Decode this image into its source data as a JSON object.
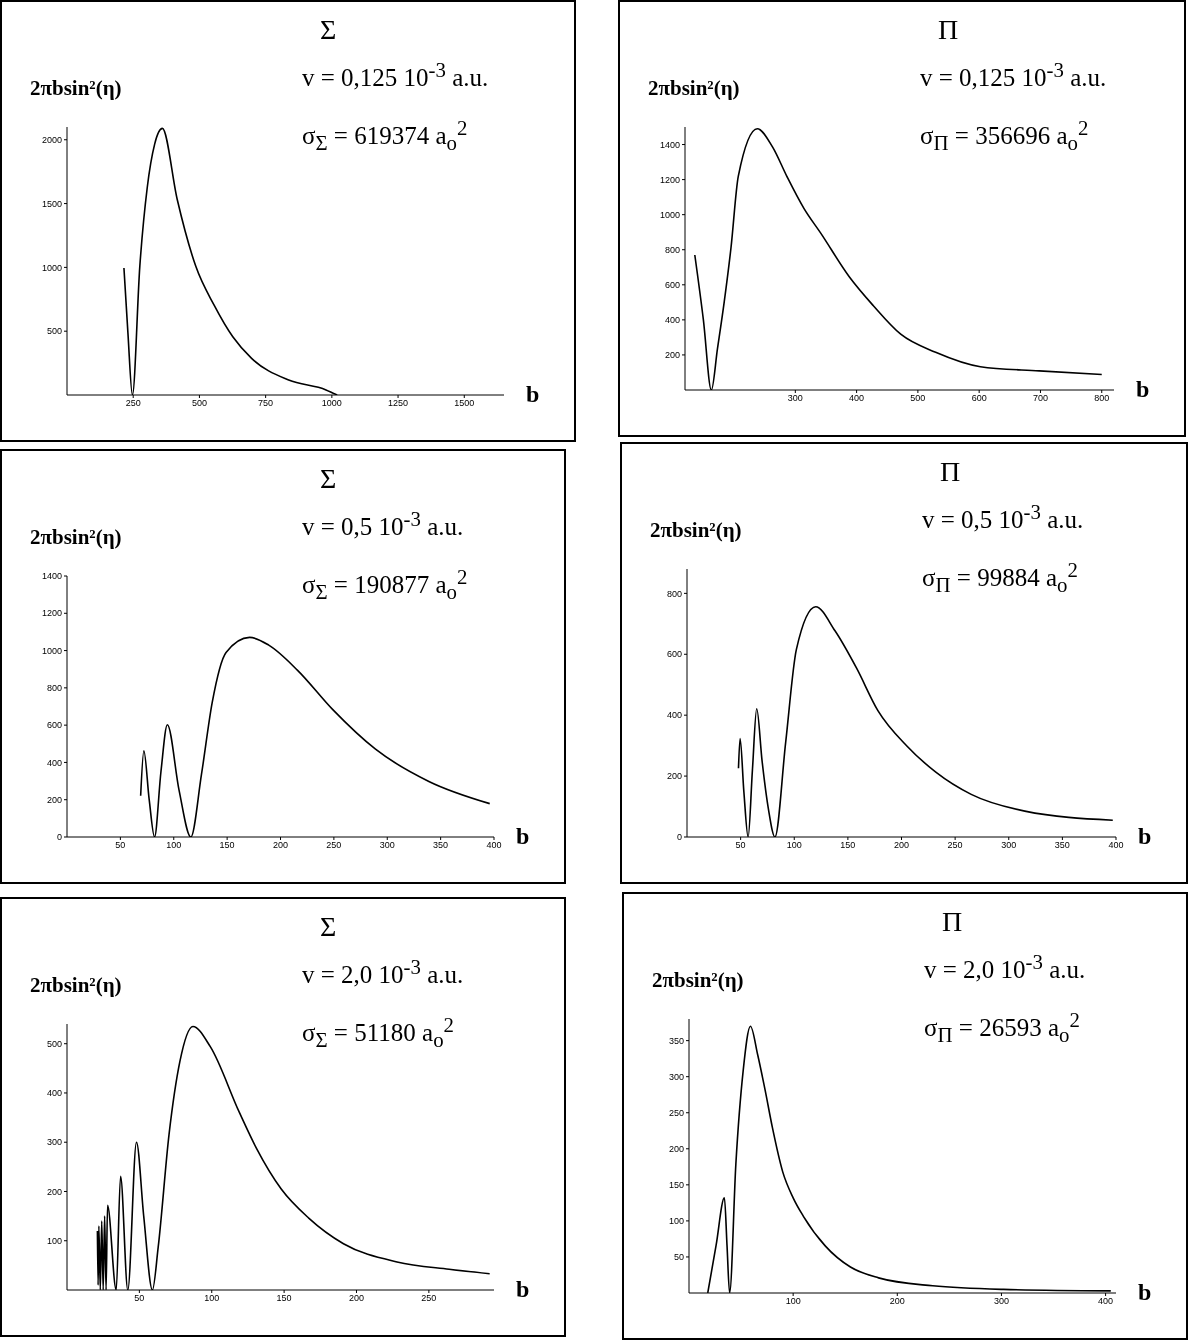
{
  "chart_data": [
    {
      "type": "line",
      "title": "Σ",
      "xlabel": "b",
      "ylabel": "2πbsin²(η)",
      "annotations": [
        "v = 0,125 10$^{-3}$ a.u.",
        "σ$_{Σ}$ = 619374 a$_{o}$$^{2}$"
      ],
      "color": "#000000",
      "marker": "none",
      "xlim": [
        0,
        1650
      ],
      "ylim": [
        0,
        2100
      ],
      "xticks": [
        250,
        500,
        750,
        1000,
        1250,
        1500
      ],
      "yticks": [
        500,
        1000,
        1500,
        2000
      ],
      "x": [
        215,
        230,
        247,
        275,
        303,
        331,
        360,
        416,
        486,
        556,
        626,
        697,
        837,
        978,
        1020
      ],
      "values": [
        995,
        487,
        0,
        1010,
        1626,
        1966,
        2089,
        1534,
        1010,
        702,
        456,
        287,
        117,
        40,
        0
      ]
    },
    {
      "type": "line",
      "title": "Π",
      "xlabel": "b",
      "ylabel": "2πbsin²(η)",
      "annotations": [
        "v = 0,125 10$^{-3}$ a.u.",
        "σ$_{Π}$ = 356696 a$_{o}$$^{2}$"
      ],
      "color": "#000000",
      "marker": "none",
      "xlim": [
        120,
        820
      ],
      "ylim": [
        0,
        1500
      ],
      "xticks": [
        300,
        400,
        500,
        600,
        700,
        800
      ],
      "yticks": [
        200,
        400,
        600,
        800,
        1000,
        1200,
        1400
      ],
      "x": [
        136,
        150,
        163,
        173,
        184,
        195,
        207,
        238,
        263,
        286,
        314,
        342,
        388,
        427,
        472,
        529,
        602,
        698,
        800
      ],
      "values": [
        770,
        400,
        0,
        236,
        503,
        810,
        1220,
        1490,
        1385,
        1220,
        1036,
        892,
        646,
        482,
        318,
        215,
        133,
        109,
        88
      ]
    },
    {
      "type": "line",
      "title": "Σ",
      "xlabel": "b",
      "ylabel": "2πbsin²(η)",
      "annotations": [
        "v = 0,5 10$^{-3}$ a.u.",
        "σ$_{Σ}$ = 190877 a$_{o}$$^{2}$"
      ],
      "color": "#000000",
      "marker": "none",
      "xlim": [
        0,
        400
      ],
      "ylim": [
        0,
        1400
      ],
      "xticks": [
        50,
        100,
        150,
        200,
        250,
        300,
        350,
        400
      ],
      "yticks": [
        0,
        200,
        400,
        600,
        800,
        1000,
        1200,
        1400
      ],
      "x": [
        69,
        72,
        77,
        82,
        88,
        94,
        105,
        116,
        126,
        136,
        149,
        171,
        189,
        216,
        249,
        289,
        339,
        396
      ],
      "values": [
        221,
        462,
        200,
        0,
        350,
        602,
        250,
        0,
        337,
        721,
        990,
        1071,
        1029,
        894,
        683,
        471,
        298,
        179
      ]
    },
    {
      "type": "line",
      "title": "Π",
      "xlabel": "b",
      "ylabel": "2πbsin²(η)",
      "annotations": [
        "v = 0,5 10$^{-3}$ a.u.",
        "σ$_{Π}$ = 99884 a$_{o}$$^{2}$"
      ],
      "color": "#000000",
      "marker": "none",
      "xlim": [
        0,
        400
      ],
      "ylim": [
        0,
        880
      ],
      "xticks": [
        50,
        100,
        150,
        200,
        250,
        300,
        350,
        400
      ],
      "yticks": [
        0,
        200,
        400,
        600,
        800
      ],
      "x": [
        48,
        49.5,
        53,
        57,
        61,
        65,
        70,
        76,
        82,
        92,
        102,
        120,
        138,
        158,
        178,
        205,
        232,
        265,
        315,
        397
      ],
      "values": [
        226,
        323,
        150,
        0,
        220,
        421,
        250,
        90,
        0,
        311,
        616,
        756,
        677,
        555,
        415,
        299,
        213,
        140,
        85,
        55
      ]
    },
    {
      "type": "line",
      "title": "Σ",
      "xlabel": "b",
      "ylabel": "2πbsin²(η)",
      "annotations": [
        "v = 2,0 10$^{-3}$ a.u.",
        "σ$_{Σ}$ = 51180 a$_{o}$$^{2}$"
      ],
      "color": "#000000",
      "marker": "none",
      "xlim": [
        0,
        295
      ],
      "ylim": [
        0,
        540
      ],
      "xticks": [
        50,
        100,
        150,
        200,
        250
      ],
      "yticks": [
        100,
        200,
        300,
        400,
        500
      ],
      "x": [
        21,
        21.5,
        22,
        23,
        24,
        25,
        26,
        27,
        28,
        34,
        37,
        42,
        48,
        53,
        59,
        63,
        70.5,
        78,
        87,
        99,
        119,
        131,
        148,
        167,
        191,
        228,
        264,
        292
      ],
      "values": [
        120,
        10,
        130,
        0,
        140,
        0,
        150,
        0,
        172,
        0,
        231,
        0,
        300,
        150,
        0,
        87,
        316,
        464,
        535,
        494,
        361,
        287,
        205,
        146,
        94,
        57,
        42,
        33
      ]
    },
    {
      "type": "line",
      "title": "Π",
      "xlabel": "b",
      "ylabel": "2πbsin²(η)",
      "annotations": [
        "v = 2,0 10$^{-3}$ a.u.",
        "σ$_{Π}$ = 26593 a$_{o}$$^{2}$"
      ],
      "color": "#000000",
      "marker": "none",
      "xlim": [
        0,
        410
      ],
      "ylim": [
        0,
        380
      ],
      "xticks": [
        100,
        200,
        300,
        400
      ],
      "yticks": [
        50,
        100,
        150,
        200,
        250,
        300,
        350
      ],
      "x": [
        18,
        26,
        34,
        36.5,
        39,
        45,
        52,
        59,
        66,
        73,
        80,
        90,
        100,
        110,
        131,
        155,
        182,
        234,
        302,
        405
      ],
      "values": [
        0,
        66,
        132,
        66,
        0,
        179,
        308,
        370,
        330,
        282,
        230,
        168,
        132,
        106,
        65,
        36,
        21,
        10,
        5,
        3
      ]
    }
  ]
}
